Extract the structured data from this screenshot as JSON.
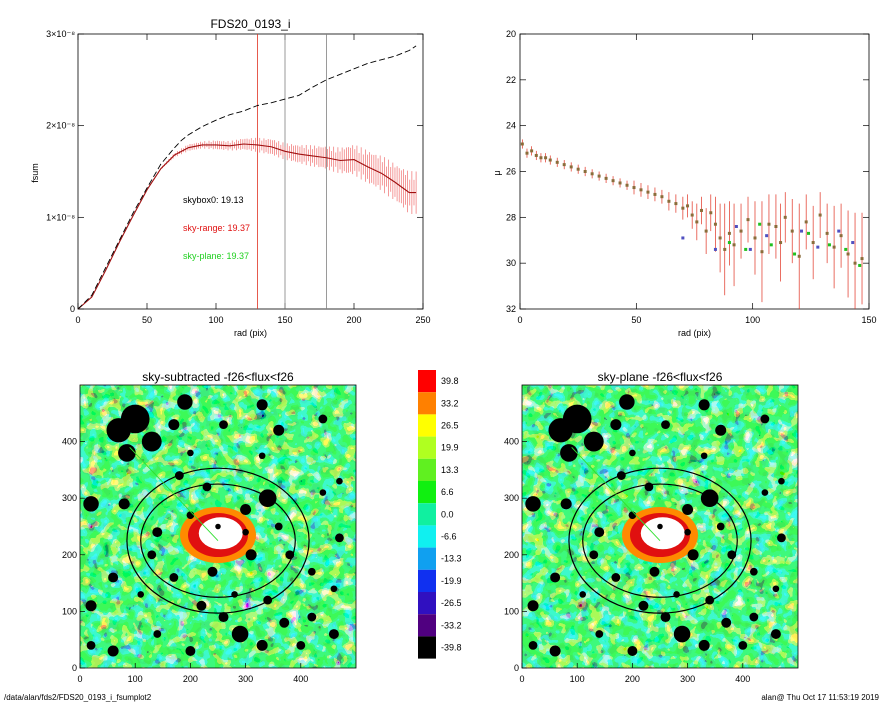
{
  "footer": {
    "path": "/data/alan/fds2/FDS20_0193_i_fsumplot2",
    "stamp": "alan@  Thu Oct 17 11:53:19 2019"
  },
  "chart_data": [
    {
      "type": "line",
      "title": "FDS20_0193_i",
      "xlabel": "rad (pix)",
      "ylabel": "fsum",
      "xlim": [
        0,
        250
      ],
      "ylim": [
        0,
        3e-08
      ],
      "xticks": [
        "0",
        "50",
        "100",
        "150",
        "200",
        "250"
      ],
      "yticks": [
        "0",
        "1×10⁻⁸",
        "2×10⁻⁸",
        "3×10⁻⁸"
      ],
      "vlines": [
        {
          "x": 130,
          "color": "#e03020"
        },
        {
          "x": 150,
          "color": "#808080"
        },
        {
          "x": 180,
          "color": "#808080"
        }
      ],
      "annotations": [
        {
          "text": "skybox0: 19.13",
          "color": "#000000"
        },
        {
          "text": "sky-range: 19.37",
          "color": "#e01010"
        },
        {
          "text": "sky-plane: 19.37",
          "color": "#20d020"
        }
      ],
      "series": [
        {
          "style": "dashed",
          "color": "#000000",
          "x": [
            0,
            10,
            20,
            30,
            40,
            50,
            60,
            70,
            75,
            80,
            90,
            100,
            110,
            120,
            130,
            140,
            150,
            160,
            170,
            180,
            190,
            200,
            210,
            220,
            230,
            240,
            245
          ],
          "y": [
            0,
            1.5e-09,
            4.5e-09,
            7.5e-09,
            1.05e-08,
            1.32e-08,
            1.58e-08,
            1.76e-08,
            1.84e-08,
            1.9e-08,
            1.99e-08,
            2.06e-08,
            2.12e-08,
            2.16e-08,
            2.22e-08,
            2.25e-08,
            2.29e-08,
            2.33e-08,
            2.42e-08,
            2.5e-08,
            2.56e-08,
            2.62e-08,
            2.68e-08,
            2.72e-08,
            2.76e-08,
            2.82e-08,
            2.87e-08
          ]
        },
        {
          "style": "solid-errorbars",
          "color": "#a01010",
          "errcolor": "#f07070",
          "x": [
            0,
            10,
            20,
            30,
            40,
            50,
            60,
            70,
            80,
            90,
            100,
            110,
            120,
            130,
            140,
            150,
            160,
            170,
            180,
            190,
            200,
            210,
            220,
            230,
            240,
            245
          ],
          "y": [
            0,
            1.3e-09,
            4.2e-09,
            7.3e-09,
            1.02e-08,
            1.3e-08,
            1.53e-08,
            1.68e-08,
            1.76e-08,
            1.79e-08,
            1.79e-08,
            1.78e-08,
            1.8e-08,
            1.79e-08,
            1.77e-08,
            1.72e-08,
            1.69e-08,
            1.67e-08,
            1.65e-08,
            1.62e-08,
            1.63e-08,
            1.55e-08,
            1.48e-08,
            1.38e-08,
            1.27e-08,
            1.27e-08
          ],
          "err": [
            0,
            0,
            0,
            0,
            0,
            0,
            1e-10,
            2e-10,
            3e-10,
            3e-10,
            4e-10,
            4e-10,
            5e-10,
            6e-10,
            7e-10,
            7e-10,
            8e-10,
            9e-10,
            1e-09,
            1.1e-09,
            1.3e-09,
            1.4e-09,
            1.5e-09,
            1.6e-09,
            1.8e-09,
            1.8e-09
          ]
        }
      ]
    },
    {
      "type": "scatter",
      "xlabel": "rad (pix)",
      "ylabel": "μ",
      "xlim": [
        0,
        150
      ],
      "ylim": [
        32,
        20
      ],
      "xticks": [
        "0",
        "50",
        "100",
        "150"
      ],
      "yticks": [
        "20",
        "22",
        "24",
        "26",
        "28",
        "30",
        "32"
      ],
      "series": [
        {
          "marker": "square",
          "color": "#8a6d3b",
          "errcolor": "#e03020",
          "x": [
            1,
            3,
            5,
            7,
            9,
            11,
            13,
            16,
            19,
            22,
            25,
            28,
            31,
            34,
            37,
            40,
            43,
            46,
            49,
            52,
            55,
            58,
            61,
            64,
            67,
            70,
            72,
            74,
            76,
            78,
            80,
            82,
            84,
            86,
            88,
            90,
            92,
            95,
            98,
            101,
            104,
            107,
            110,
            112,
            114,
            117,
            120,
            123,
            126,
            129,
            132,
            135,
            138,
            141,
            144,
            147
          ],
          "y": [
            24.8,
            25.2,
            25.1,
            25.3,
            25.4,
            25.4,
            25.5,
            25.6,
            25.7,
            25.8,
            25.9,
            26.0,
            26.1,
            26.2,
            26.3,
            26.4,
            26.5,
            26.6,
            26.7,
            26.8,
            26.9,
            27.0,
            27.1,
            27.3,
            27.4,
            27.6,
            27.5,
            27.9,
            28.2,
            27.7,
            28.6,
            27.8,
            28.3,
            28.9,
            29.4,
            28.7,
            29.2,
            28.6,
            28.1,
            28.9,
            29.5,
            28.3,
            28.4,
            29.1,
            28.0,
            28.6,
            29.7,
            28.2,
            29.1,
            27.9,
            28.7,
            29.3,
            28.8,
            29.6,
            30.0,
            29.8
          ],
          "err": [
            0.2,
            0.2,
            0.2,
            0.2,
            0.2,
            0.2,
            0.2,
            0.2,
            0.2,
            0.2,
            0.2,
            0.2,
            0.2,
            0.2,
            0.2,
            0.2,
            0.2,
            0.2,
            0.3,
            0.3,
            0.3,
            0.3,
            0.3,
            0.4,
            0.4,
            0.5,
            0.5,
            0.6,
            0.8,
            0.6,
            1.0,
            0.8,
            1.2,
            1.5,
            2.0,
            1.4,
            1.8,
            1.2,
            1.0,
            1.6,
            2.2,
            1.3,
            1.4,
            1.7,
            1.1,
            1.4,
            2.3,
            1.2,
            1.6,
            1.0,
            1.3,
            1.8,
            1.4,
            1.9,
            2.2,
            2.0
          ]
        },
        {
          "marker": "square",
          "color": "#20c020",
          "x": [
            90,
            97,
            103,
            108,
            118,
            124,
            133,
            140,
            146
          ],
          "y": [
            29.1,
            29.4,
            28.3,
            29.2,
            29.6,
            28.7,
            29.2,
            29.4,
            30.1
          ]
        },
        {
          "marker": "square",
          "color": "#5050c0",
          "x": [
            70,
            84,
            93,
            99,
            106,
            121,
            128,
            137,
            143
          ],
          "y": [
            28.9,
            29.4,
            28.4,
            29.4,
            28.8,
            28.6,
            29.3,
            28.6,
            29.1
          ]
        }
      ]
    },
    {
      "type": "heatmap",
      "title": "sky-subtracted -f26<flux<f26",
      "xlim": [
        0,
        500
      ],
      "ylim": [
        0,
        500
      ],
      "xticks": [
        "0",
        "100",
        "200",
        "300",
        "400"
      ],
      "yticks": [
        "0",
        "100",
        "200",
        "300",
        "400"
      ],
      "ellipses": [
        {
          "cx": 250,
          "cy": 225,
          "rx": 140,
          "ry": 100
        },
        {
          "cx": 250,
          "cy": 225,
          "rx": 165,
          "ry": 128
        }
      ]
    },
    {
      "type": "heatmap",
      "title": "sky-plane -f26<flux<f26",
      "xlim": [
        0,
        500
      ],
      "ylim": [
        0,
        500
      ],
      "xticks": [
        "0",
        "100",
        "200",
        "300",
        "400"
      ],
      "yticks": [
        "0",
        "100",
        "200",
        "300",
        "400"
      ],
      "ellipses": [
        {
          "cx": 250,
          "cy": 225,
          "rx": 140,
          "ry": 100
        },
        {
          "cx": 250,
          "cy": 225,
          "rx": 165,
          "ry": 128
        }
      ]
    },
    {
      "type": "colorbar",
      "levels": [
        {
          "label": "39.8",
          "color": "#ff0000"
        },
        {
          "label": "33.2",
          "color": "#ff8000"
        },
        {
          "label": "26.5",
          "color": "#ffff00"
        },
        {
          "label": "19.9",
          "color": "#b0ff20"
        },
        {
          "label": "13.3",
          "color": "#60f020"
        },
        {
          "label": "6.6",
          "color": "#10f010"
        },
        {
          "label": "0.0",
          "color": "#10f0a0"
        },
        {
          "label": "-6.6",
          "color": "#10f0f0"
        },
        {
          "label": "-13.3",
          "color": "#10a0f0"
        },
        {
          "label": "-19.9",
          "color": "#1030f0"
        },
        {
          "label": "-26.5",
          "color": "#3010c0"
        },
        {
          "label": "-33.2",
          "color": "#500080"
        },
        {
          "label": "-39.8",
          "color": "#000000"
        }
      ]
    }
  ]
}
